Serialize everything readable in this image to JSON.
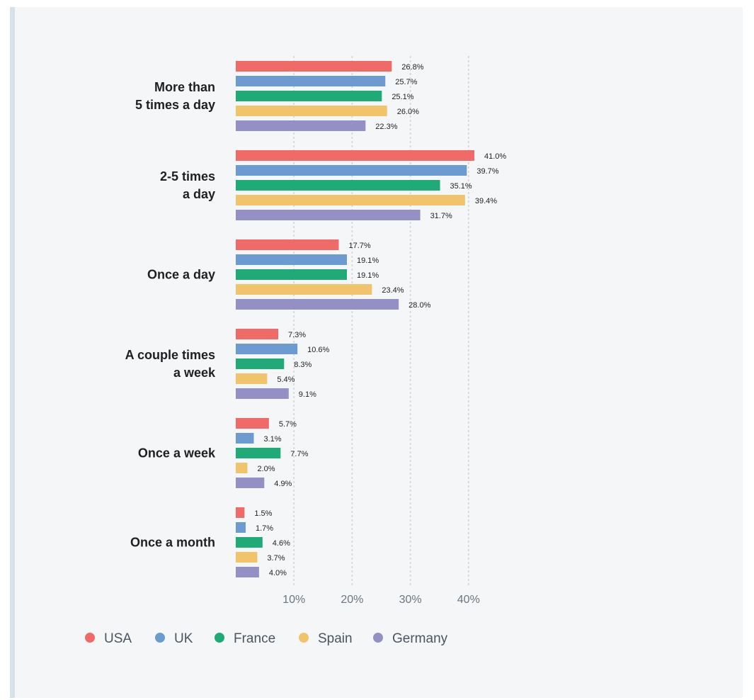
{
  "colors": {
    "background": "#f5f6f7",
    "accent_bar": "#d5e2ea",
    "grid": "#d2d6da",
    "label_text": "#1d1f22",
    "tick_text": "#6b7680"
  },
  "chart_data": {
    "type": "bar",
    "orientation": "horizontal",
    "title": "",
    "xlabel": "",
    "ylabel": "",
    "xlim": [
      0,
      41
    ],
    "value_suffix": "%",
    "grid": "vertical dotted",
    "legend_position": "bottom-left",
    "ticks": [
      {
        "value": 10,
        "label": "10%"
      },
      {
        "value": 20,
        "label": "20%"
      },
      {
        "value": 30,
        "label": "30%"
      },
      {
        "value": 40,
        "label": "40%"
      }
    ],
    "categories": [
      {
        "lines": [
          "More than",
          "5 times a day"
        ]
      },
      {
        "lines": [
          "2-5 times",
          "a day"
        ]
      },
      {
        "lines": [
          "Once a day"
        ]
      },
      {
        "lines": [
          "A couple times",
          "a week"
        ]
      },
      {
        "lines": [
          "Once a week"
        ]
      },
      {
        "lines": [
          "Once a month"
        ]
      }
    ],
    "series": [
      {
        "name": "USA",
        "color": "#f06b68",
        "values": [
          26.8,
          41.0,
          17.7,
          7.3,
          5.7,
          1.5
        ]
      },
      {
        "name": "UK",
        "color": "#6b9bd1",
        "values": [
          25.7,
          39.7,
          19.1,
          10.6,
          3.1,
          1.7
        ]
      },
      {
        "name": "France",
        "color": "#1faa77",
        "values": [
          25.1,
          35.1,
          19.1,
          8.3,
          7.7,
          4.6
        ]
      },
      {
        "name": "Spain",
        "color": "#f1c36a",
        "values": [
          26.0,
          39.4,
          23.4,
          5.4,
          2.0,
          3.7
        ]
      },
      {
        "name": "Germany",
        "color": "#9490c6",
        "values": [
          22.3,
          31.7,
          28.0,
          9.1,
          4.9,
          4.0
        ]
      }
    ]
  }
}
